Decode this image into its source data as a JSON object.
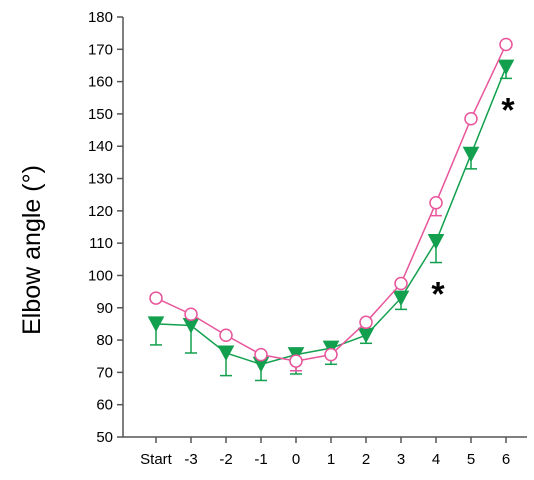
{
  "chart_data": {
    "type": "line",
    "title": "",
    "xlabel": "",
    "ylabel": "Elbow angle (°)",
    "categories": [
      "Start",
      "-3",
      "-2",
      "-1",
      "0",
      "1",
      "2",
      "3",
      "4",
      "5",
      "6"
    ],
    "ylim": [
      50,
      180
    ],
    "yticks": [
      50,
      60,
      70,
      80,
      90,
      100,
      110,
      120,
      130,
      140,
      150,
      160,
      170,
      180
    ],
    "grid": false,
    "legend": "none",
    "series": [
      {
        "marker": "open-circle",
        "color": "#e8559b",
        "values": [
          93,
          88,
          81.5,
          75.5,
          73.5,
          75.5,
          85.5,
          97.5,
          122.5,
          148.5,
          171.5
        ],
        "error": [
          0,
          0,
          0,
          0,
          3,
          0,
          0,
          0,
          4,
          0,
          0
        ]
      },
      {
        "marker": "filled-triangle-down",
        "color": "#12a04e",
        "values": [
          85,
          84.5,
          76,
          72.5,
          75.5,
          77.5,
          81.5,
          93,
          110.5,
          137.5,
          164.5
        ],
        "error": [
          6.5,
          8.5,
          7,
          5,
          6,
          5,
          2.5,
          3.5,
          6.5,
          4.5,
          3.5
        ]
      }
    ],
    "annotations": [
      {
        "text": "*",
        "category": "4",
        "y": 95
      },
      {
        "text": "*",
        "category": "6",
        "y": 152
      }
    ]
  }
}
